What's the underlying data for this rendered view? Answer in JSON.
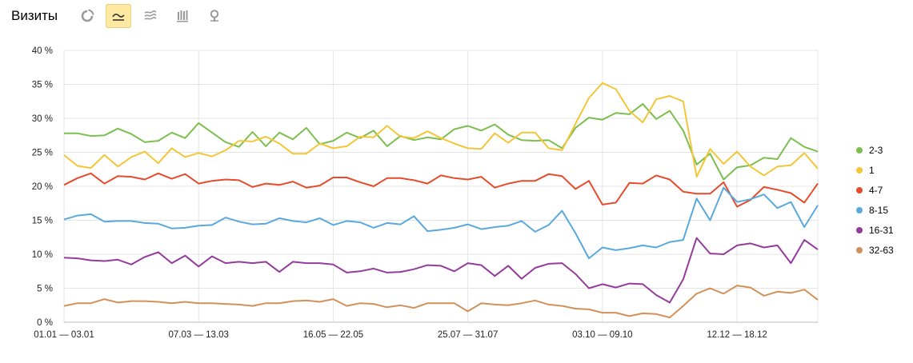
{
  "header": {
    "title": "Визиты",
    "views": [
      {
        "icon": "pie-chart-icon",
        "active": false
      },
      {
        "icon": "line-chart-icon",
        "active": true
      },
      {
        "icon": "area-chart-icon",
        "active": false
      },
      {
        "icon": "bar-chart-icon",
        "active": false
      },
      {
        "icon": "map-marker-icon",
        "active": false
      }
    ]
  },
  "chart_data": {
    "type": "line",
    "title": "",
    "xlabel": "",
    "ylabel": "",
    "ylim": [
      0,
      40
    ],
    "y_ticks": [
      "0 %",
      "5 %",
      "10 %",
      "15 %",
      "20 %",
      "25 %",
      "30 %",
      "35 %",
      "40 %"
    ],
    "x_tick_labels": [
      {
        "index": 0,
        "label": "01.01 — 03.01"
      },
      {
        "index": 10,
        "label": "07.03 — 13.03"
      },
      {
        "index": 20,
        "label": "16.05 — 22.05"
      },
      {
        "index": 30,
        "label": "25.07 — 31.07"
      },
      {
        "index": 40,
        "label": "03.10 — 09.10"
      },
      {
        "index": 50,
        "label": "12.12 — 18.12"
      }
    ],
    "grid": true,
    "legend_position": "right",
    "series": [
      {
        "name": "2-3",
        "color": "#7cbf4f",
        "values": [
          27.8,
          27.8,
          27.4,
          27.5,
          28.5,
          27.7,
          26.5,
          26.7,
          27.9,
          27.1,
          29.3,
          27.9,
          26.5,
          25.8,
          28.0,
          25.9,
          27.9,
          26.9,
          28.6,
          26.2,
          26.7,
          27.9,
          27.1,
          28.2,
          25.9,
          27.4,
          26.8,
          27.2,
          26.9,
          28.4,
          28.9,
          28.2,
          29.1,
          27.6,
          26.8,
          26.7,
          26.8,
          25.6,
          28.6,
          30.1,
          29.8,
          30.8,
          30.6,
          32.1,
          29.9,
          31.1,
          28.2,
          23.2,
          24.8,
          21.0,
          22.8,
          23.1,
          24.2,
          24.0,
          27.1,
          25.8,
          25.1
        ]
      },
      {
        "name": "1",
        "color": "#f3c637",
        "values": [
          24.6,
          23.0,
          22.7,
          24.6,
          22.9,
          24.3,
          25.1,
          23.4,
          25.6,
          24.3,
          24.9,
          24.4,
          25.3,
          26.7,
          26.6,
          27.3,
          26.3,
          24.8,
          24.8,
          26.3,
          25.6,
          25.9,
          27.3,
          27.2,
          28.9,
          27.3,
          27.1,
          28.1,
          27.1,
          26.3,
          25.6,
          25.5,
          27.8,
          26.4,
          27.9,
          27.9,
          25.6,
          25.3,
          29.2,
          33.0,
          35.2,
          34.3,
          31.1,
          29.4,
          32.8,
          33.3,
          32.5,
          21.4,
          25.5,
          23.3,
          25.1,
          22.9,
          21.6,
          22.9,
          23.1,
          24.9,
          22.6
        ]
      },
      {
        "name": "4-7",
        "color": "#e64c2c",
        "values": [
          20.2,
          21.2,
          21.9,
          20.4,
          21.5,
          21.4,
          21.0,
          21.9,
          21.1,
          21.8,
          20.4,
          20.8,
          21.0,
          20.9,
          19.9,
          20.4,
          20.2,
          20.7,
          19.8,
          20.1,
          21.3,
          21.3,
          20.6,
          20.0,
          21.2,
          21.2,
          20.9,
          20.4,
          21.6,
          21.2,
          21.0,
          21.4,
          19.8,
          20.4,
          20.8,
          20.8,
          21.8,
          21.5,
          19.6,
          20.8,
          17.3,
          17.6,
          20.5,
          20.4,
          21.6,
          21.0,
          19.2,
          18.9,
          18.9,
          20.6,
          17.0,
          18.0,
          19.9,
          19.5,
          19.0,
          17.6,
          20.4
        ]
      },
      {
        "name": "8-15",
        "color": "#5aa9de",
        "values": [
          15.1,
          15.7,
          15.9,
          14.8,
          14.9,
          14.9,
          14.6,
          14.5,
          13.8,
          13.9,
          14.2,
          14.3,
          15.4,
          14.8,
          14.4,
          14.5,
          15.3,
          14.9,
          14.7,
          15.3,
          14.3,
          14.9,
          14.7,
          13.9,
          14.6,
          14.4,
          15.6,
          13.4,
          13.6,
          13.9,
          14.4,
          13.7,
          14.0,
          14.2,
          14.9,
          13.3,
          14.3,
          16.4,
          13.1,
          9.4,
          11.0,
          10.6,
          10.9,
          11.3,
          11.0,
          11.8,
          12.1,
          18.2,
          15.0,
          19.8,
          17.7,
          18.1,
          18.8,
          16.8,
          17.7,
          14.0,
          17.2
        ]
      },
      {
        "name": "16-31",
        "color": "#943b9c",
        "values": [
          9.5,
          9.4,
          9.1,
          9.0,
          9.2,
          8.5,
          9.6,
          10.3,
          8.7,
          9.8,
          8.2,
          9.7,
          8.7,
          8.9,
          8.7,
          8.9,
          7.4,
          8.9,
          8.7,
          8.7,
          8.5,
          7.3,
          7.5,
          7.9,
          7.3,
          7.4,
          7.8,
          8.4,
          8.3,
          7.5,
          8.7,
          8.4,
          6.8,
          8.3,
          6.4,
          8.0,
          8.6,
          8.7,
          7.1,
          5.0,
          5.6,
          5.1,
          5.7,
          5.6,
          4.0,
          2.9,
          6.3,
          12.4,
          10.1,
          10.0,
          11.3,
          11.6,
          11.0,
          11.3,
          8.7,
          12.1,
          10.7
        ]
      },
      {
        "name": "32-63",
        "color": "#d3915a",
        "values": [
          2.4,
          2.8,
          2.8,
          3.4,
          2.9,
          3.1,
          3.1,
          3.0,
          2.8,
          3.0,
          2.8,
          2.8,
          2.7,
          2.6,
          2.4,
          2.8,
          2.8,
          3.1,
          3.2,
          3.0,
          3.4,
          2.4,
          2.8,
          2.7,
          2.2,
          2.5,
          2.1,
          2.8,
          2.8,
          2.8,
          1.6,
          2.8,
          2.6,
          2.5,
          2.8,
          3.2,
          2.6,
          2.4,
          2.0,
          1.9,
          1.4,
          1.4,
          0.9,
          1.3,
          1.2,
          0.7,
          2.4,
          4.2,
          5.0,
          4.2,
          5.4,
          5.1,
          3.9,
          4.5,
          4.3,
          4.8,
          3.3
        ]
      }
    ]
  }
}
